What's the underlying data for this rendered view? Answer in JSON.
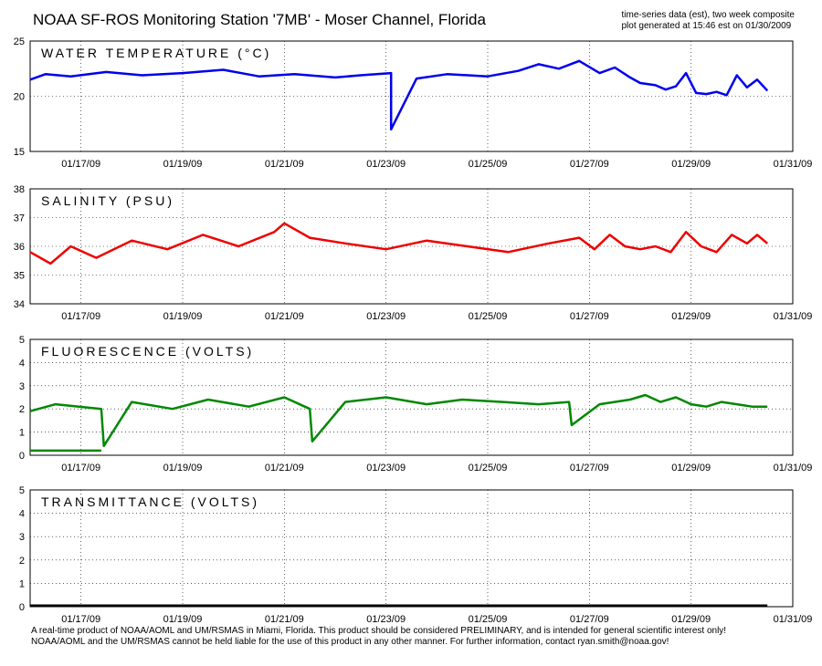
{
  "header": {
    "title": "NOAA SF-ROS Monitoring Station '7MB' - Moser Channel, Florida",
    "meta_line1": "time-series data (est), two week composite",
    "meta_line2": "plot generated at 15:46 est on 01/30/2009"
  },
  "footer": {
    "line1": "A real-time product of NOAA/AOML and UM/RSMAS in Miami, Florida. This product should be considered PRELIMINARY, and is intended for general scientific interest only!",
    "line2": "NOAA/AOML and the UM/RSMAS cannot be held liable for the use of this product in any other manner.  For further information, contact ryan.smith@noaa.gov!"
  },
  "chart_data": [
    {
      "type": "line",
      "title": "WATER TEMPERATURE (°C)",
      "color": "#0000ee",
      "x_unit": "days from 01/16/09 00:00",
      "xlim": [
        0,
        15
      ],
      "xticks": [
        1,
        3,
        5,
        7,
        9,
        11,
        13,
        15
      ],
      "xticklabels": [
        "01/17/09",
        "01/19/09",
        "01/21/09",
        "01/23/09",
        "01/25/09",
        "01/27/09",
        "01/29/09",
        "01/31/09"
      ],
      "ylim": [
        15,
        25
      ],
      "yticks": [
        15,
        20,
        25
      ],
      "grid": true,
      "series": [
        {
          "x": [
            0,
            0.3,
            0.8,
            1.5,
            2.2,
            3,
            3.8,
            4.5,
            5.2,
            6,
            6.5,
            7.1,
            7.1,
            7.6,
            8.2,
            9,
            9.6,
            10,
            10.4,
            10.8,
            11.2,
            11.5,
            11.8,
            12.0,
            12.3,
            12.5,
            12.7,
            12.9,
            13.1,
            13.3,
            13.5,
            13.7,
            13.9,
            14.1,
            14.3,
            14.5
          ],
          "y": [
            21.5,
            22.0,
            21.8,
            22.2,
            21.9,
            22.1,
            22.4,
            21.8,
            22.0,
            21.7,
            21.9,
            22.1,
            17.0,
            21.6,
            22.0,
            21.8,
            22.3,
            22.9,
            22.5,
            23.2,
            22.1,
            22.6,
            21.7,
            21.2,
            21.0,
            20.6,
            20.9,
            22.1,
            20.3,
            20.2,
            20.4,
            20.1,
            21.9,
            20.8,
            21.5,
            20.5
          ]
        }
      ]
    },
    {
      "type": "line",
      "title": "SALINITY (PSU)",
      "color": "#ee0000",
      "x_unit": "days from 01/16/09 00:00",
      "xlim": [
        0,
        15
      ],
      "xticks": [
        1,
        3,
        5,
        7,
        9,
        11,
        13,
        15
      ],
      "xticklabels": [
        "01/17/09",
        "01/19/09",
        "01/21/09",
        "01/23/09",
        "01/25/09",
        "01/27/09",
        "01/29/09",
        "01/31/09"
      ],
      "ylim": [
        34,
        38
      ],
      "yticks": [
        34,
        35,
        36,
        37,
        38
      ],
      "grid": true,
      "series": [
        {
          "x": [
            0,
            0.4,
            0.8,
            1.3,
            2,
            2.7,
            3.4,
            4.1,
            4.8,
            5.0,
            5.5,
            6.2,
            7,
            7.8,
            8.6,
            9.4,
            10.2,
            10.8,
            11.1,
            11.4,
            11.7,
            12.0,
            12.3,
            12.6,
            12.9,
            13.2,
            13.5,
            13.8,
            14.1,
            14.3,
            14.5
          ],
          "y": [
            35.8,
            35.4,
            36.0,
            35.6,
            36.2,
            35.9,
            36.4,
            36.0,
            36.5,
            36.8,
            36.3,
            36.1,
            35.9,
            36.2,
            36.0,
            35.8,
            36.1,
            36.3,
            35.9,
            36.4,
            36.0,
            35.9,
            36.0,
            35.8,
            36.5,
            36.0,
            35.8,
            36.4,
            36.1,
            36.4,
            36.1
          ]
        }
      ]
    },
    {
      "type": "line",
      "title": "FLUORESCENCE (VOLTS)",
      "color": "#008800",
      "x_unit": "days from 01/16/09 00:00",
      "xlim": [
        0,
        15
      ],
      "xticks": [
        1,
        3,
        5,
        7,
        9,
        11,
        13,
        15
      ],
      "xticklabels": [
        "01/17/09",
        "01/19/09",
        "01/21/09",
        "01/23/09",
        "01/25/09",
        "01/27/09",
        "01/29/09",
        "01/31/09"
      ],
      "ylim": [
        0,
        5
      ],
      "yticks": [
        0,
        1,
        2,
        3,
        4,
        5
      ],
      "grid": true,
      "series": [
        {
          "x": [
            0,
            0.5,
            1.4,
            1.45,
            2,
            2.8,
            3.5,
            4.3,
            5,
            5.5,
            5.55,
            6.2,
            7,
            7.8,
            8.5,
            9.3,
            10.0,
            10.6,
            10.65,
            11.2,
            11.8,
            12.1,
            12.4,
            12.7,
            13.0,
            13.3,
            13.6,
            13.9,
            14.2,
            14.5
          ],
          "y": [
            1.9,
            2.2,
            2.0,
            0.4,
            2.3,
            2.0,
            2.4,
            2.1,
            2.5,
            2.0,
            0.6,
            2.3,
            2.5,
            2.2,
            2.4,
            2.3,
            2.2,
            2.3,
            1.3,
            2.2,
            2.4,
            2.6,
            2.3,
            2.5,
            2.2,
            2.1,
            2.3,
            2.2,
            2.1,
            2.1
          ]
        },
        {
          "x": [
            0,
            1.4
          ],
          "y": [
            0.2,
            0.2
          ]
        }
      ]
    },
    {
      "type": "line",
      "title": "TRANSMITTANCE (VOLTS)",
      "color": "#000000",
      "x_unit": "days from 01/16/09 00:00",
      "xlim": [
        0,
        15
      ],
      "xticks": [
        1,
        3,
        5,
        7,
        9,
        11,
        13,
        15
      ],
      "xticklabels": [
        "01/17/09",
        "01/19/09",
        "01/21/09",
        "01/23/09",
        "01/25/09",
        "01/27/09",
        "01/29/09",
        "01/31/09"
      ],
      "ylim": [
        0,
        5
      ],
      "yticks": [
        0,
        1,
        2,
        3,
        4,
        5
      ],
      "grid": true,
      "series": [
        {
          "x": [
            0,
            14.5
          ],
          "y": [
            0.05,
            0.05
          ]
        }
      ]
    }
  ]
}
